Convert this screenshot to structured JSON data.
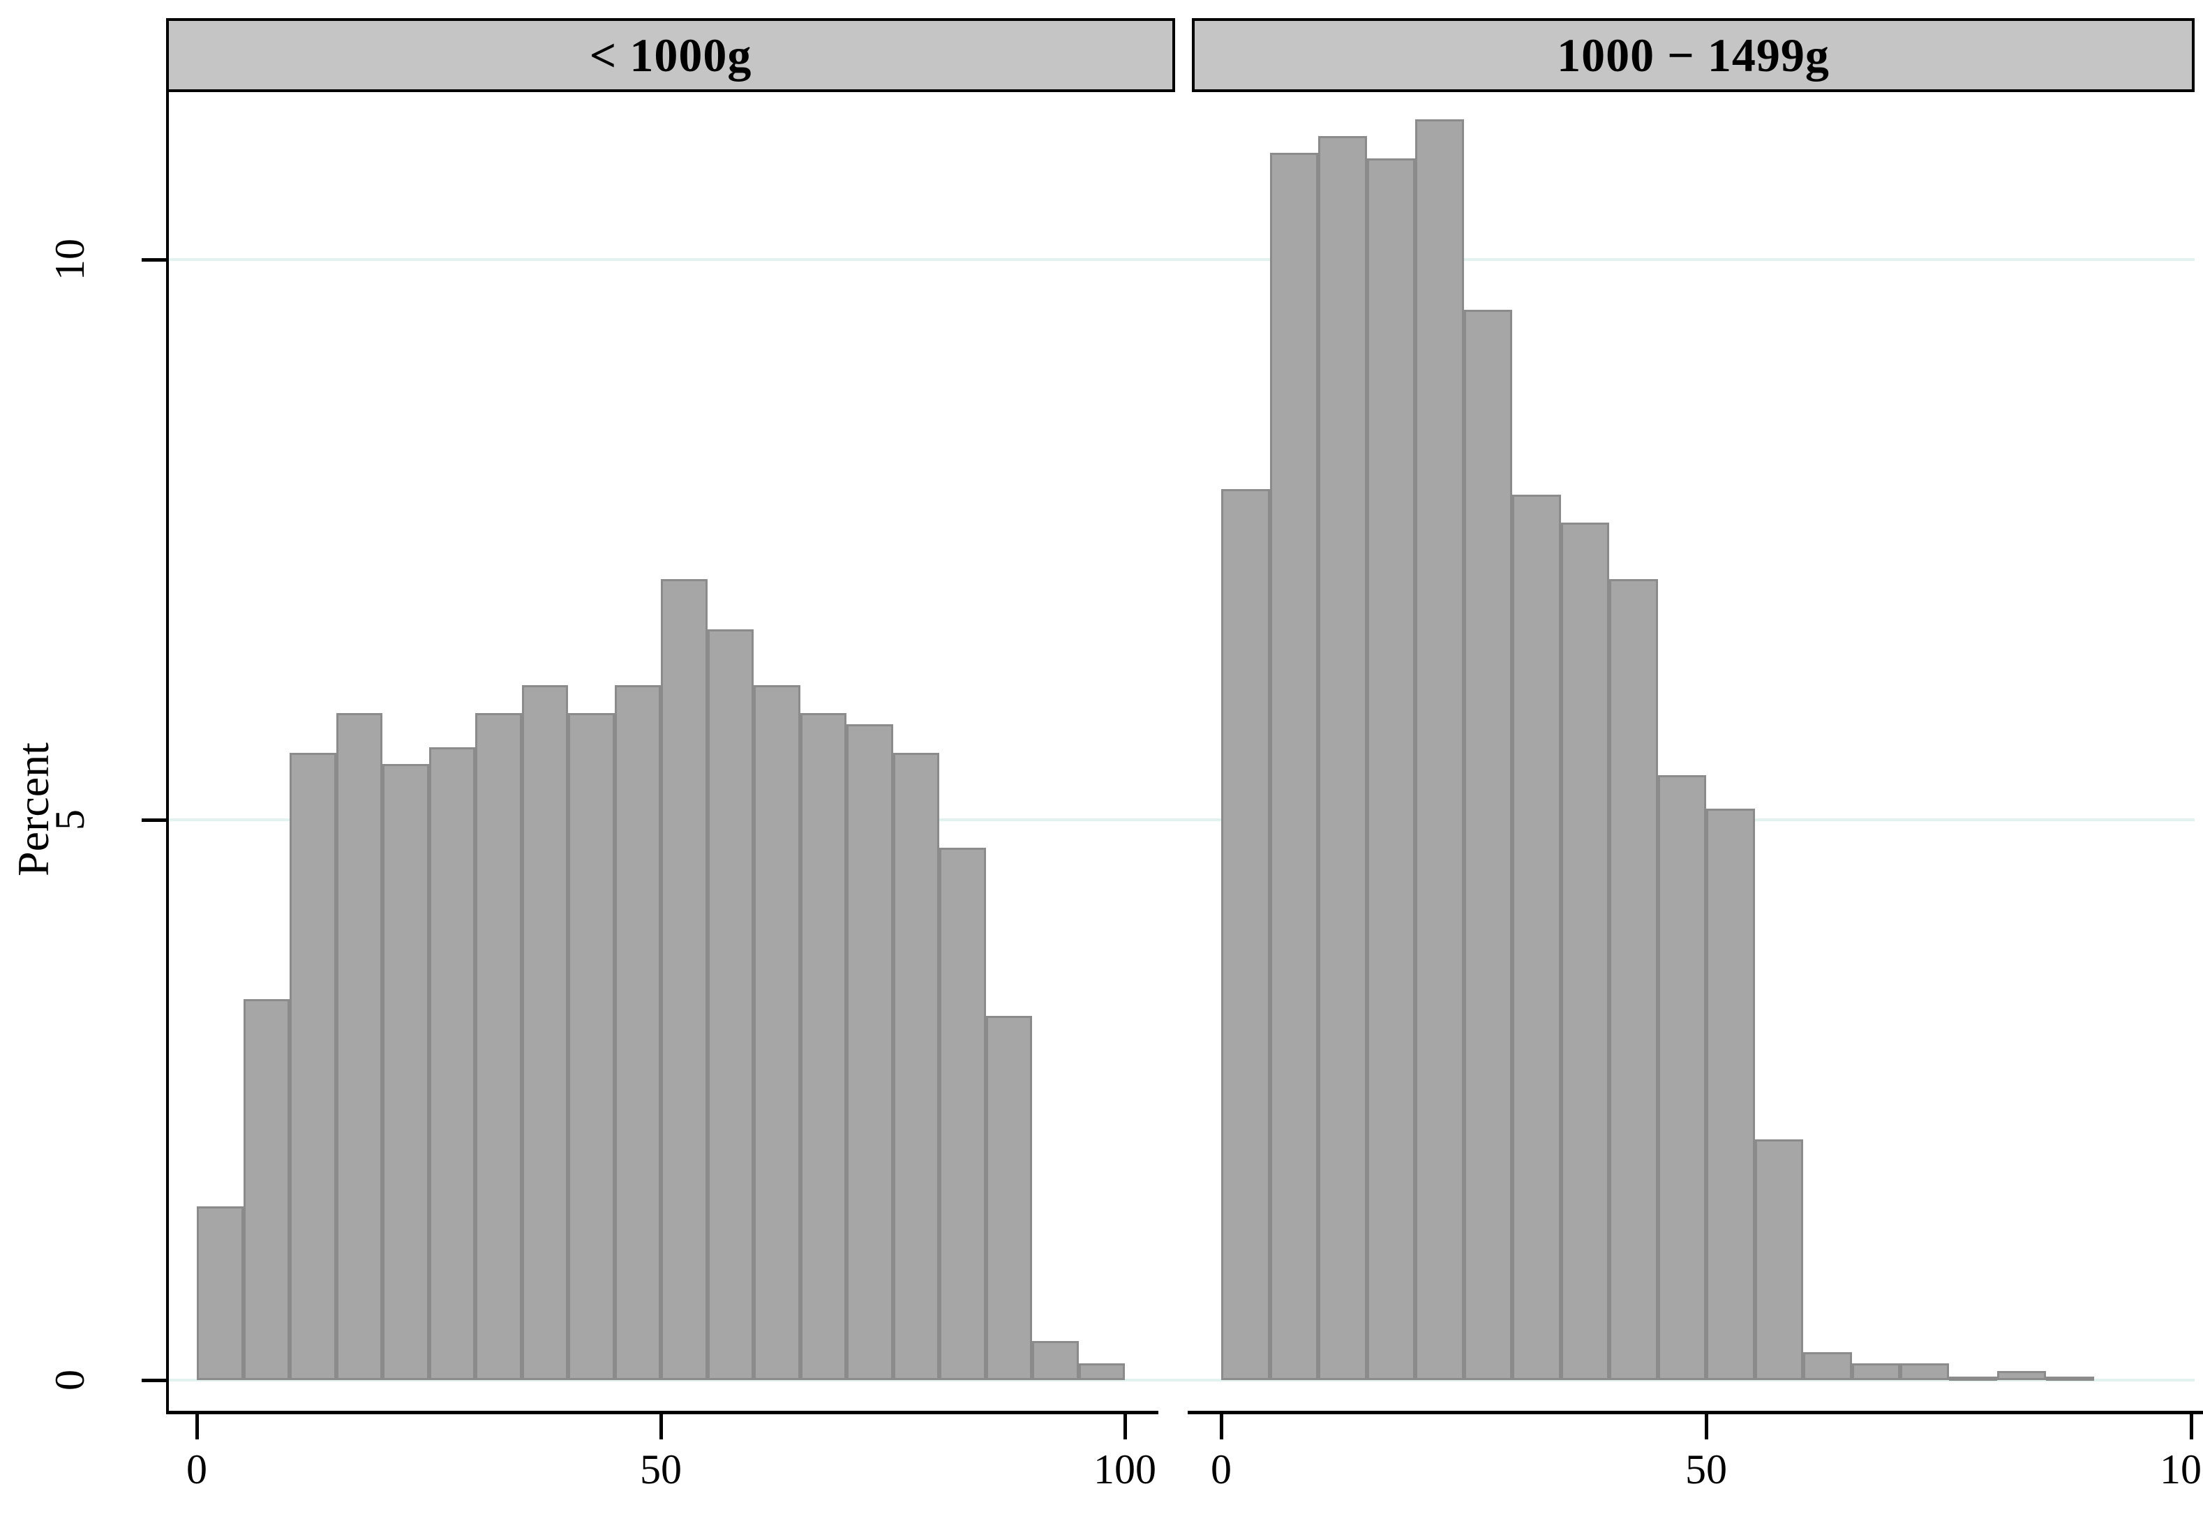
{
  "chart_data": {
    "type": "bar",
    "subtype": "histogram",
    "title": "",
    "xlabel": "",
    "ylabel": "Percent",
    "xlim": [
      0,
      100
    ],
    "ylim": [
      0,
      11.5
    ],
    "x_ticks": [
      0,
      50,
      100
    ],
    "y_ticks": [
      0,
      5,
      10
    ],
    "grid": "horizontal light gridlines at y ticks, drawn behind bars",
    "legend_position": "none",
    "bin_width": 5,
    "bin_starts": [
      0,
      5,
      10,
      15,
      20,
      25,
      30,
      35,
      40,
      45,
      50,
      55,
      60,
      65,
      70,
      75,
      80,
      85,
      90,
      95
    ],
    "panels": [
      {
        "title": "< 1000g",
        "values": [
          1.55,
          3.4,
          5.6,
          5.95,
          5.5,
          5.65,
          5.95,
          6.2,
          5.95,
          6.2,
          7.15,
          6.7,
          6.2,
          5.95,
          5.85,
          5.6,
          4.75,
          3.25,
          0.35,
          0.15
        ]
      },
      {
        "title": "1000 − 1499g",
        "values": [
          7.95,
          10.95,
          11.1,
          10.9,
          11.25,
          9.55,
          7.9,
          7.65,
          7.15,
          5.4,
          5.1,
          2.15,
          0.25,
          0.15,
          0.15,
          0.03,
          0.08,
          0.03,
          0,
          0
        ]
      }
    ]
  },
  "colors": {
    "bar_fill": "#a6a6a6",
    "bar_outline": "#8b8b8b",
    "gridline": "#e2f2ee",
    "panel_title_bg": "#c5c5c5",
    "panel_title_border": "#000000",
    "axis": "#000000",
    "background": "#ffffff"
  }
}
